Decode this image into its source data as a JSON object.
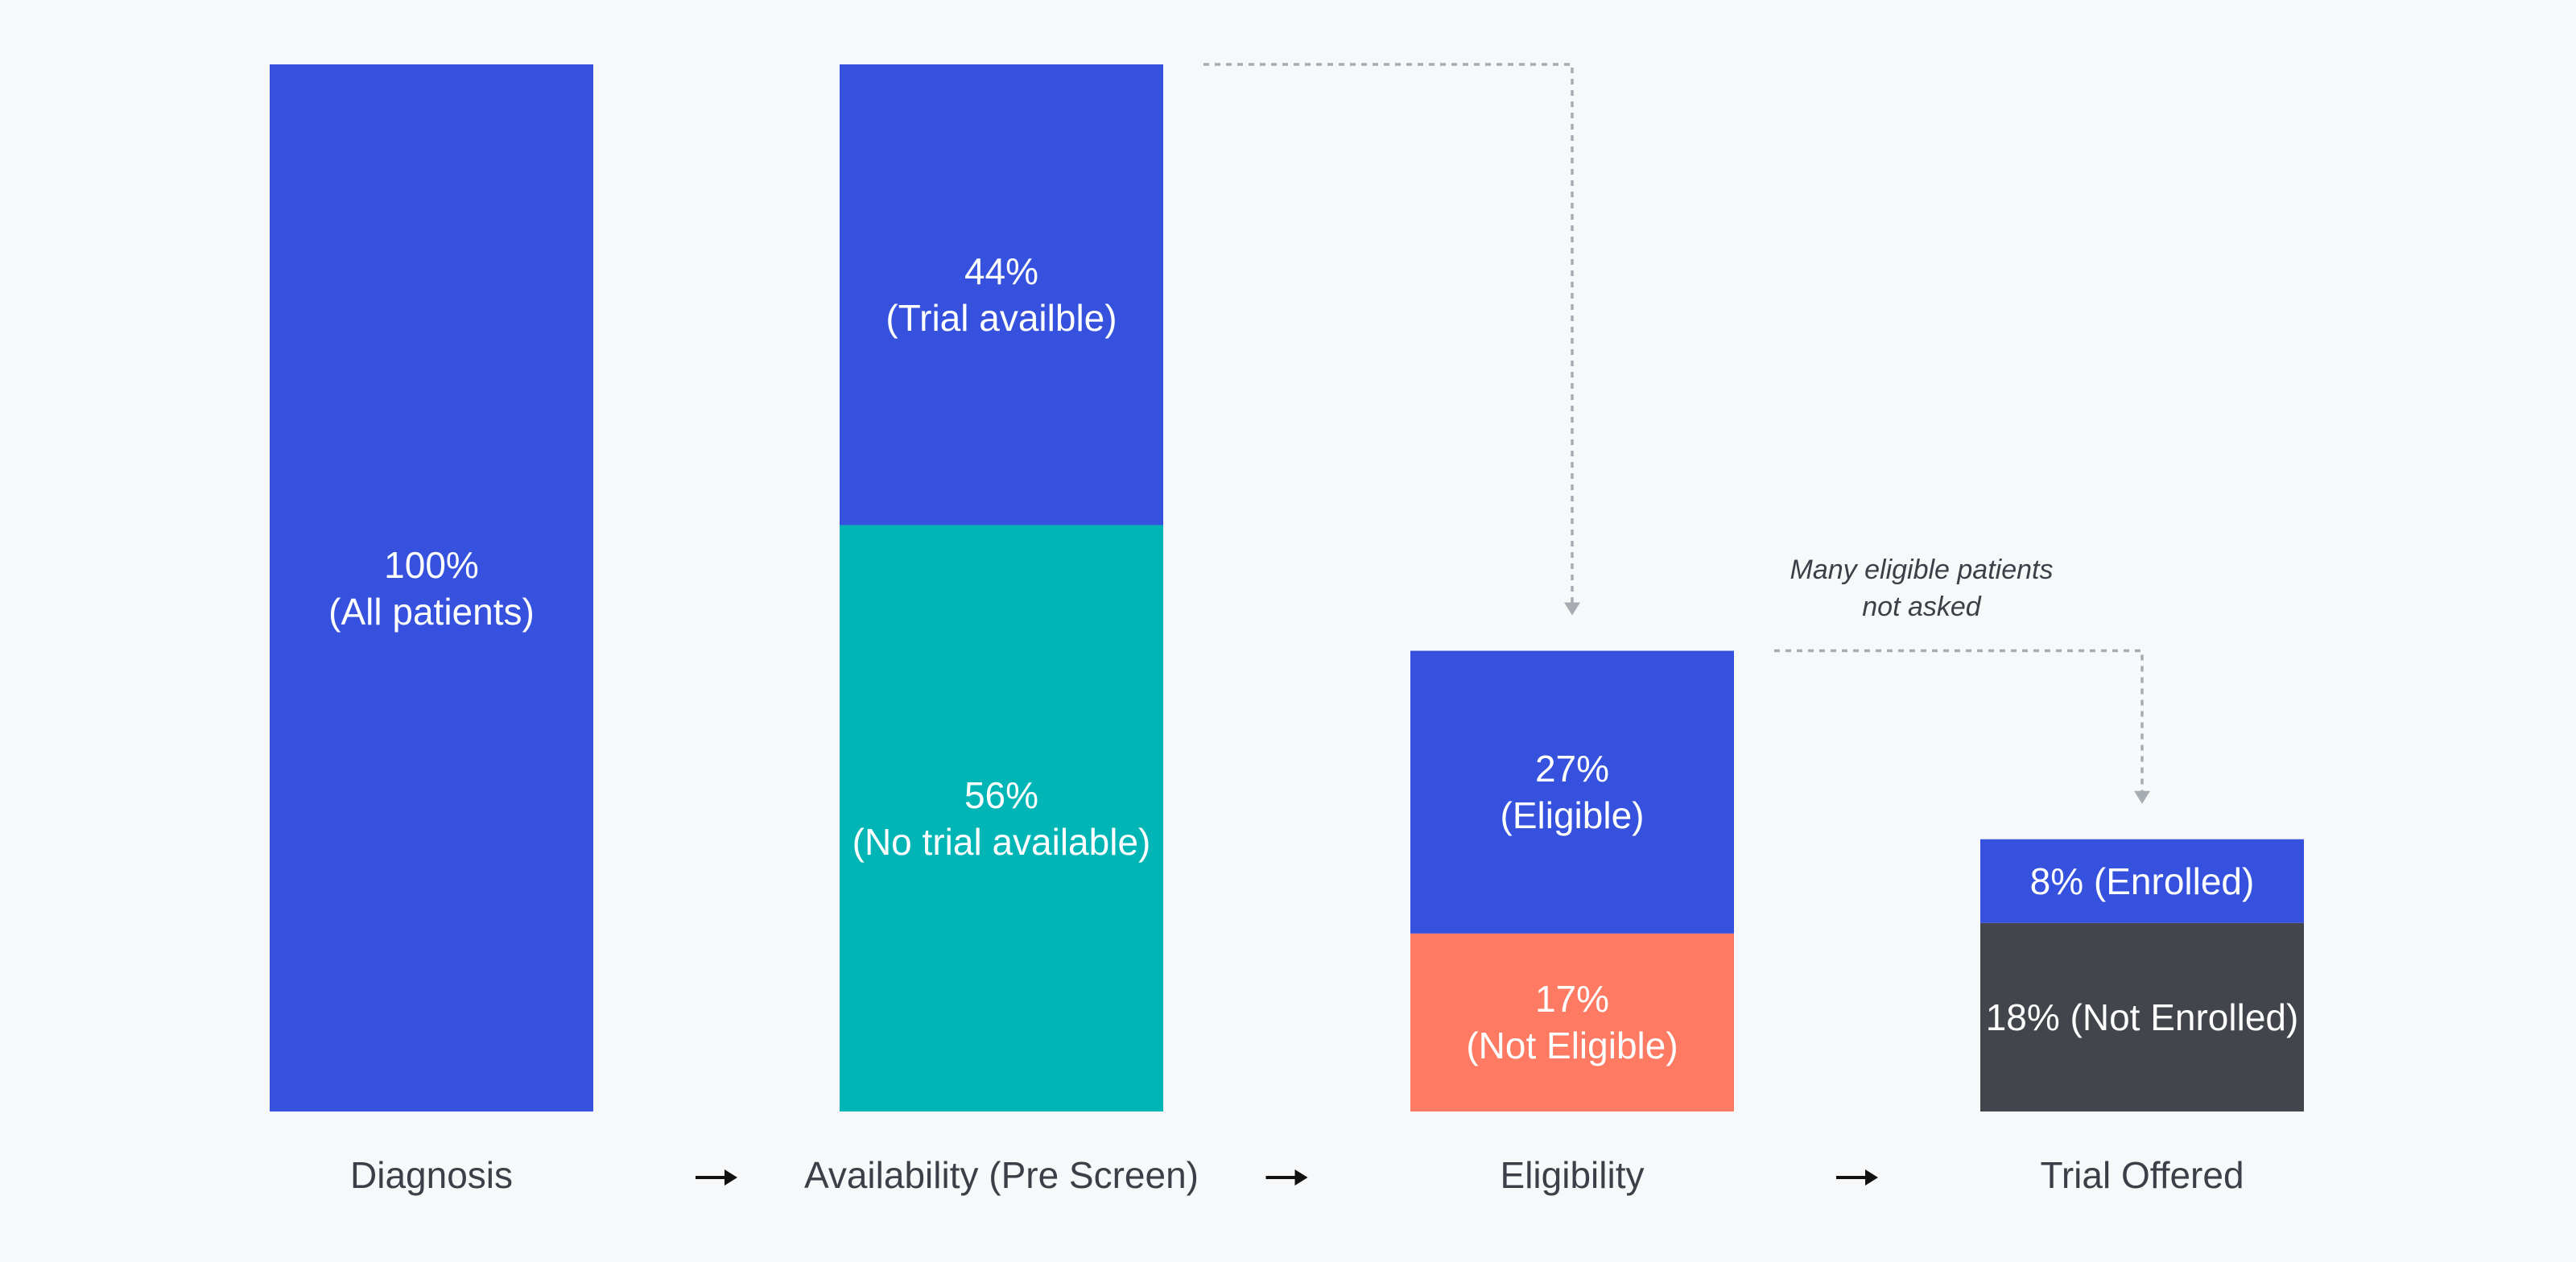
{
  "chart_data": {
    "type": "bar",
    "stacked": true,
    "ylim": [
      0,
      100
    ],
    "grid": false,
    "legend": "none",
    "categories": [
      "Diagnosis",
      "Availability (Pre Screen)",
      "Eligibility",
      "Trial Offered"
    ],
    "bars": [
      {
        "category": "Diagnosis",
        "segments": [
          {
            "value": 100,
            "label_lines": [
              "100%",
              "(All patients)"
            ],
            "color": "#3551dd"
          }
        ]
      },
      {
        "category": "Availability (Pre Screen)",
        "segments": [
          {
            "value": 56,
            "label_lines": [
              "56%",
              "(No trial available)"
            ],
            "color": "#00b5b5"
          },
          {
            "value": 44,
            "label_lines": [
              "44%",
              "(Trial availble)"
            ],
            "color": "#3551dd"
          }
        ]
      },
      {
        "category": "Eligibility",
        "segments": [
          {
            "value": 17,
            "label_lines": [
              "17%",
              "(Not Eligible)"
            ],
            "color": "#ff7a62"
          },
          {
            "value": 27,
            "label_lines": [
              "27%",
              "(Eligible)"
            ],
            "color": "#3551dd"
          }
        ]
      },
      {
        "category": "Trial Offered",
        "segments": [
          {
            "value": 18,
            "label_lines": [
              "18% (Not Enrolled)"
            ],
            "color": "#43454c"
          },
          {
            "value": 8,
            "label_lines": [
              "8% (Enrolled)"
            ],
            "color": "#3551dd"
          }
        ]
      }
    ],
    "annotations": [
      {
        "text_lines": [
          "Many eligible patients",
          "not asked"
        ],
        "from_category": "Eligibility",
        "to_category": "Trial Offered"
      }
    ],
    "connectors": [
      {
        "from_category": "Availability (Pre Screen)",
        "to_category": "Eligibility",
        "style": "dotted-arrow"
      },
      {
        "from_category": "Eligibility",
        "to_category": "Trial Offered",
        "style": "dotted-arrow"
      }
    ]
  },
  "colors": {
    "background": "#f7f8fa",
    "connector": "#a7abb2",
    "text_dark": "#3b3f47",
    "flow_arrow": "#111111"
  },
  "flow_arrow_icon": "right-arrow-icon"
}
